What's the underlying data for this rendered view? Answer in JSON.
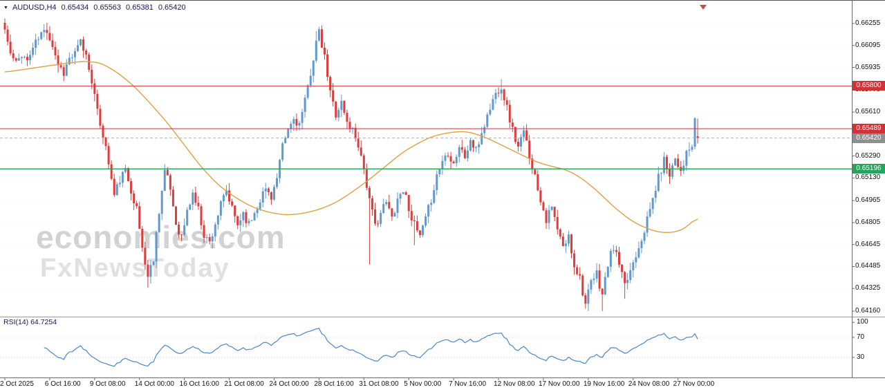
{
  "header": {
    "symbol_period": "AUDUSD,H4",
    "open": "0.65434",
    "high": "0.65563",
    "low": "0.65381",
    "close": "0.65420"
  },
  "watermark": {
    "line1": "economies.com",
    "line2": "FxNewsToday"
  },
  "rsi_label": "RSI(14) 64.7254",
  "colors": {
    "bull": "#6099cf",
    "bear": "#e03b3b",
    "ma": "#dfa042",
    "rsi": "#4a86c8",
    "marker": "#c05050"
  },
  "price_axis": {
    "labels": [
      "0.66255",
      "0.66095",
      "0.65935",
      "0.65770",
      "0.65610",
      "0.65450",
      "0.65290",
      "0.65130",
      "0.64965",
      "0.64805",
      "0.64645",
      "0.64485",
      "0.64325",
      "0.64160"
    ]
  },
  "rsi_axis": {
    "labels": [
      {
        "value": 100,
        "text": "100"
      },
      {
        "value": 70,
        "text": "70"
      },
      {
        "value": 30,
        "text": "30"
      }
    ]
  },
  "time_axis": {
    "labels": [
      {
        "bar": 0,
        "text": "2 Oct 2025"
      },
      {
        "bar": 16,
        "text": "6 Oct 16:00"
      },
      {
        "bar": 32,
        "text": "9 Oct 08:00"
      },
      {
        "bar": 48,
        "text": "14 Oct 00:00"
      },
      {
        "bar": 64,
        "text": "16 Oct 16:00"
      },
      {
        "bar": 80,
        "text": "21 Oct 08:00"
      },
      {
        "bar": 96,
        "text": "24 Oct 00:00"
      },
      {
        "bar": 112,
        "text": "28 Oct 16:00"
      },
      {
        "bar": 128,
        "text": "31 Oct 08:00"
      },
      {
        "bar": 144,
        "text": "5 Nov 00:00"
      },
      {
        "bar": 160,
        "text": "7 Nov 16:00"
      },
      {
        "bar": 176,
        "text": "12 Nov 08:00"
      },
      {
        "bar": 192,
        "text": "17 Nov 00:00"
      },
      {
        "bar": 208,
        "text": "19 Nov 16:00"
      },
      {
        "bar": 224,
        "text": "24 Nov 08:00"
      },
      {
        "bar": 240,
        "text": "27 Nov 00:00"
      }
    ]
  },
  "chart_data": {
    "type": "candlestick",
    "symbol": "AUDUSD",
    "timeframe": "H4",
    "bars": 248,
    "ylim": [
      0.6413,
      0.66411
    ],
    "current_price": 0.6542,
    "last_candle": [
      0.65434,
      0.65563,
      0.65381,
      0.6542
    ],
    "resistance": [
      0.658,
      0.65489
    ],
    "support": [
      0.65196
    ],
    "rsi_period": 14,
    "rsi_current": 64.7254,
    "rsi_guides": [
      70,
      30
    ],
    "close_jitter": 0.0007,
    "wick_amp": 0.00055,
    "levels": [
      {
        "name": "resistance-1",
        "price": 0.658,
        "label": "0.65800",
        "color": "#cf3338",
        "width": 1
      },
      {
        "name": "resistance-2",
        "price": 0.65489,
        "label": "0.65489",
        "color": "#cf3338",
        "width": 1
      },
      {
        "name": "current-price",
        "price": 0.6542,
        "label": "0.65420",
        "color": "#b0b0b0",
        "badge": "#8f8f8f",
        "dash": "4,3",
        "width": 1
      },
      {
        "name": "support-1",
        "price": 0.65196,
        "label": "0.65196",
        "color": "#27a35c",
        "width": 1.3
      }
    ],
    "close_anchors": [
      [
        0,
        0.6621
      ],
      [
        2,
        0.6603
      ],
      [
        4,
        0.6596
      ],
      [
        6,
        0.6604
      ],
      [
        8,
        0.6598
      ],
      [
        10,
        0.6608
      ],
      [
        13,
        0.6618
      ],
      [
        15,
        0.6621
      ],
      [
        17,
        0.661
      ],
      [
        19,
        0.6596
      ],
      [
        21,
        0.659
      ],
      [
        23,
        0.66
      ],
      [
        25,
        0.6603
      ],
      [
        27,
        0.6612
      ],
      [
        29,
        0.6602
      ],
      [
        31,
        0.6585
      ],
      [
        33,
        0.656
      ],
      [
        35,
        0.6545
      ],
      [
        37,
        0.6524
      ],
      [
        39,
        0.65
      ],
      [
        41,
        0.6512
      ],
      [
        43,
        0.6518
      ],
      [
        45,
        0.6505
      ],
      [
        47,
        0.649
      ],
      [
        49,
        0.6462
      ],
      [
        51,
        0.6441
      ],
      [
        53,
        0.6455
      ],
      [
        55,
        0.649
      ],
      [
        57,
        0.6518
      ],
      [
        59,
        0.6505
      ],
      [
        61,
        0.648
      ],
      [
        63,
        0.647
      ],
      [
        65,
        0.6488
      ],
      [
        67,
        0.6502
      ],
      [
        69,
        0.649
      ],
      [
        71,
        0.6472
      ],
      [
        73,
        0.6466
      ],
      [
        75,
        0.648
      ],
      [
        77,
        0.6493
      ],
      [
        79,
        0.6503
      ],
      [
        81,
        0.649
      ],
      [
        83,
        0.6479
      ],
      [
        85,
        0.6488
      ],
      [
        87,
        0.6479
      ],
      [
        89,
        0.6488
      ],
      [
        91,
        0.6498
      ],
      [
        93,
        0.6505
      ],
      [
        95,
        0.65
      ],
      [
        97,
        0.6512
      ],
      [
        99,
        0.6535
      ],
      [
        101,
        0.6548
      ],
      [
        103,
        0.6556
      ],
      [
        105,
        0.6552
      ],
      [
        107,
        0.6568
      ],
      [
        109,
        0.659
      ],
      [
        111,
        0.6612
      ],
      [
        112,
        0.6618
      ],
      [
        114,
        0.66
      ],
      [
        116,
        0.6575
      ],
      [
        118,
        0.656
      ],
      [
        120,
        0.6568
      ],
      [
        122,
        0.6553
      ],
      [
        124,
        0.6548
      ],
      [
        126,
        0.6538
      ],
      [
        128,
        0.652
      ],
      [
        130,
        0.6496
      ],
      [
        132,
        0.6478
      ],
      [
        134,
        0.6488
      ],
      [
        136,
        0.6495
      ],
      [
        138,
        0.6484
      ],
      [
        140,
        0.6498
      ],
      [
        142,
        0.6505
      ],
      [
        144,
        0.6492
      ],
      [
        146,
        0.6478
      ],
      [
        148,
        0.647
      ],
      [
        150,
        0.6482
      ],
      [
        152,
        0.6498
      ],
      [
        154,
        0.6515
      ],
      [
        156,
        0.6526
      ],
      [
        158,
        0.6532
      ],
      [
        160,
        0.6524
      ],
      [
        162,
        0.6536
      ],
      [
        164,
        0.6528
      ],
      [
        166,
        0.654
      ],
      [
        168,
        0.6532
      ],
      [
        170,
        0.6546
      ],
      [
        172,
        0.6558
      ],
      [
        174,
        0.657
      ],
      [
        176,
        0.6578
      ],
      [
        177,
        0.658
      ],
      [
        179,
        0.6564
      ],
      [
        181,
        0.6548
      ],
      [
        183,
        0.6535
      ],
      [
        185,
        0.6546
      ],
      [
        187,
        0.653
      ],
      [
        189,
        0.6514
      ],
      [
        191,
        0.6498
      ],
      [
        193,
        0.6483
      ],
      [
        195,
        0.6491
      ],
      [
        197,
        0.6475
      ],
      [
        199,
        0.6462
      ],
      [
        201,
        0.647
      ],
      [
        203,
        0.645
      ],
      [
        205,
        0.6441
      ],
      [
        207,
        0.6421
      ],
      [
        209,
        0.6436
      ],
      [
        211,
        0.6443
      ],
      [
        213,
        0.6428
      ],
      [
        215,
        0.645
      ],
      [
        217,
        0.6463
      ],
      [
        219,
        0.645
      ],
      [
        221,
        0.6433
      ],
      [
        223,
        0.6446
      ],
      [
        225,
        0.6458
      ],
      [
        227,
        0.647
      ],
      [
        229,
        0.6482
      ],
      [
        231,
        0.6498
      ],
      [
        233,
        0.6513
      ],
      [
        235,
        0.6526
      ],
      [
        237,
        0.6517
      ],
      [
        239,
        0.6528
      ],
      [
        241,
        0.6519
      ],
      [
        243,
        0.653
      ],
      [
        245,
        0.6536
      ],
      [
        246,
        0.6553
      ],
      [
        247,
        0.6542
      ]
    ],
    "ma_anchors": [
      [
        0,
        0.659
      ],
      [
        10,
        0.6593
      ],
      [
        20,
        0.6596
      ],
      [
        28,
        0.6598
      ],
      [
        34,
        0.6597
      ],
      [
        40,
        0.659
      ],
      [
        46,
        0.658
      ],
      [
        52,
        0.6567
      ],
      [
        58,
        0.6553
      ],
      [
        64,
        0.6537
      ],
      [
        70,
        0.6521
      ],
      [
        76,
        0.6508
      ],
      [
        82,
        0.6499
      ],
      [
        88,
        0.6492
      ],
      [
        94,
        0.6488
      ],
      [
        100,
        0.6486
      ],
      [
        106,
        0.6487
      ],
      [
        112,
        0.649
      ],
      [
        118,
        0.6495
      ],
      [
        124,
        0.6503
      ],
      [
        130,
        0.6512
      ],
      [
        136,
        0.6522
      ],
      [
        142,
        0.6532
      ],
      [
        148,
        0.6539
      ],
      [
        152,
        0.6543
      ],
      [
        158,
        0.6546
      ],
      [
        164,
        0.6547
      ],
      [
        168,
        0.6545
      ],
      [
        172,
        0.6542
      ],
      [
        176,
        0.6538
      ],
      [
        180,
        0.6534
      ],
      [
        184,
        0.653
      ],
      [
        188,
        0.6526
      ],
      [
        192,
        0.6523
      ],
      [
        196,
        0.6521
      ],
      [
        200,
        0.6519
      ],
      [
        204,
        0.6515
      ],
      [
        208,
        0.6509
      ],
      [
        212,
        0.6502
      ],
      [
        216,
        0.6494
      ],
      [
        220,
        0.6487
      ],
      [
        224,
        0.6481
      ],
      [
        228,
        0.6477
      ],
      [
        232,
        0.6474
      ],
      [
        236,
        0.6473
      ],
      [
        240,
        0.6474
      ],
      [
        243,
        0.6477
      ],
      [
        247,
        0.6485
      ]
    ],
    "spikes": [
      {
        "i": 0,
        "h": 0.66255
      },
      {
        "i": 1,
        "h": 0.6624
      },
      {
        "i": 14,
        "h": 0.6625
      },
      {
        "i": 15,
        "h": 0.6626
      },
      {
        "i": 28,
        "h": 0.6616
      },
      {
        "i": 51,
        "l": 0.6433
      },
      {
        "i": 52,
        "l": 0.6436
      },
      {
        "i": 111,
        "h": 0.662
      },
      {
        "i": 112,
        "h": 0.6623
      },
      {
        "i": 130,
        "l": 0.645
      },
      {
        "i": 146,
        "l": 0.6464
      },
      {
        "i": 177,
        "h": 0.6585
      },
      {
        "i": 203,
        "l": 0.6443
      },
      {
        "i": 207,
        "l": 0.6418
      },
      {
        "i": 213,
        "l": 0.6416
      },
      {
        "i": 221,
        "l": 0.6425
      },
      {
        "i": 246,
        "h": 0.6557
      }
    ]
  }
}
